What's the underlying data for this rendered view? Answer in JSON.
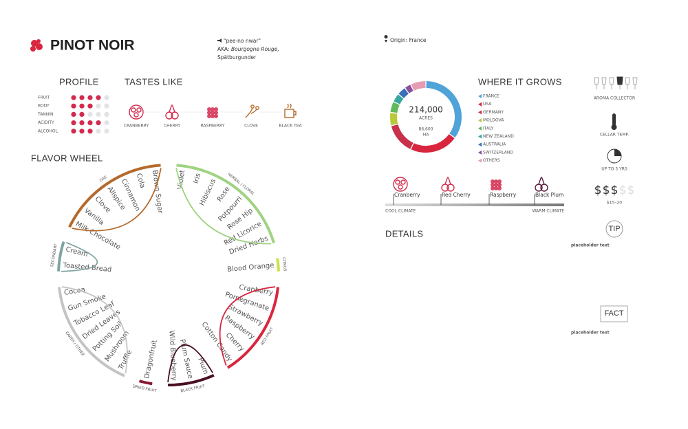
{
  "header": {
    "title": "PINOT NOIR",
    "pronunciation": "\"pee-no nwar\"",
    "aka_label": "AKA:",
    "aka_names": "Bourgogne Rouge,",
    "aka_names_2": "Spätburgunder",
    "origin": "Origin: France"
  },
  "profile": {
    "title": "PROFILE",
    "max": 5,
    "rows": [
      {
        "label": "FRUIT",
        "level": 4
      },
      {
        "label": "BODY",
        "level": 3
      },
      {
        "label": "TANNIN",
        "level": 2
      },
      {
        "label": "ACIDITY",
        "level": 4
      },
      {
        "label": "ALCOHOL",
        "level": 3
      }
    ]
  },
  "tastes_like": {
    "title": "TASTES LIKE",
    "items": [
      "CRANBERRY",
      "CHERRY",
      "RASPBERRY",
      "CLOVE",
      "BLACK TEA"
    ]
  },
  "flavor_wheel": {
    "title": "FLAVOR WHEEL",
    "groups": [
      {
        "name": "HERBAL / FLORAL",
        "color": "#9fd381",
        "items": [
          "Violet",
          "Iris",
          "Hibiscus",
          "Rose",
          "Potpourri",
          "Rose Hip",
          "Red Licorice",
          "Dried Herbs"
        ]
      },
      {
        "name": "CITRUS",
        "color": "#cfe04a",
        "items": [
          "Blood Orange"
        ]
      },
      {
        "name": "RED FRUIT",
        "color": "#d9263f",
        "items": [
          "Cranberry",
          "Pomegranate",
          "Strawberry",
          "Raspberry",
          "Cherry",
          "Cotton Candy"
        ]
      },
      {
        "name": "BLACK FRUIT",
        "color": "#4a0f22",
        "items": [
          "Plum",
          "Plum Sauce",
          "Wild Blueberry"
        ]
      },
      {
        "name": "DRIED FRUIT",
        "color": "#8a1732",
        "items": [
          "Dragonfruit"
        ]
      },
      {
        "name": "EARTH / OTHER",
        "color": "#c4c4c4",
        "items": [
          "Truffle",
          "Mushroom",
          "Potting Soil",
          "Dried Leaves",
          "Tobacco Leaf",
          "Gun Smoke",
          "Cocoa"
        ]
      },
      {
        "name": "SECONDARY",
        "color": "#7fa3a3",
        "items": [
          "Toasted Bread",
          "Cream"
        ]
      },
      {
        "name": "OAK",
        "color": "#b46a2c",
        "items": [
          "Milk Chocolate",
          "Vanilla",
          "Clove",
          "Allspice",
          "Cinnamon",
          "Cola",
          "Brown Sugar"
        ]
      }
    ]
  },
  "where_it_grows": {
    "title": "WHERE IT GROWS",
    "total": "214,000",
    "total_unit": "ACRES",
    "total_alt": "86,600",
    "total_alt_unit": "HA",
    "regions": [
      {
        "name": "FRANCE",
        "color": "#4fa3d9",
        "share": 35
      },
      {
        "name": "USA",
        "color": "#d9263f",
        "share": 22
      },
      {
        "name": "GERMANY",
        "color": "#c9304a",
        "share": 14
      },
      {
        "name": "MOLDOVA",
        "color": "#b8c93a",
        "share": 6
      },
      {
        "name": "ITALY",
        "color": "#62b85a",
        "share": 5
      },
      {
        "name": "NEW ZEALAND",
        "color": "#3aa6a0",
        "share": 4
      },
      {
        "name": "AUSTRALIA",
        "color": "#3b6fb6",
        "share": 4
      },
      {
        "name": "SWITZERLAND",
        "color": "#8a4f9e",
        "share": 3
      },
      {
        "name": "OTHERS",
        "color": "#e79bb3",
        "share": 7
      }
    ]
  },
  "climate": {
    "items": [
      "Cranberry",
      "Red Cherry",
      "Raspberry",
      "Black Plum"
    ],
    "cool": "COOL CLIMATE",
    "warm": "WARM CLIMATE"
  },
  "details": {
    "title": "DETAILS"
  },
  "sidebar": {
    "aroma": "AROMA COLLECTOR",
    "temp": "CELLAR TEMP.",
    "aging": "UP TO 5 YRS",
    "price_symbol": "$",
    "price_level": 3,
    "price_max": 5,
    "price_range": "$15–20",
    "tip": "TIP",
    "tip_text": "placeholder text",
    "fact": "FACT",
    "fact_text": "placeholder text"
  }
}
